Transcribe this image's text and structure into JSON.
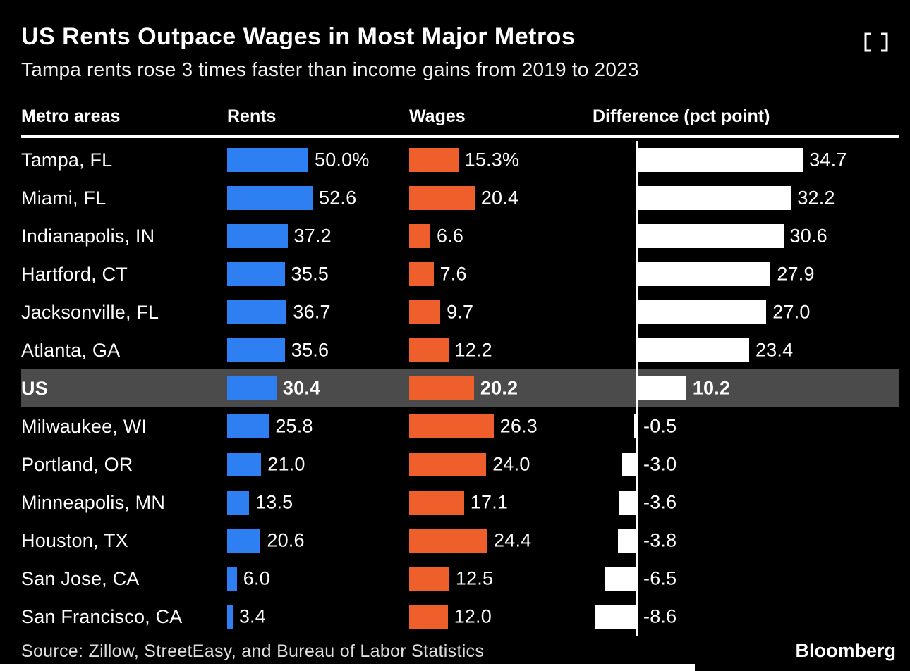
{
  "title": "US Rents Outpace Wages in Most Major Metros",
  "subtitle": "Tampa rents rose 3 times faster than income gains from 2019 to 2023",
  "columns": {
    "metro": "Metro areas",
    "rents": "Rents",
    "wages": "Wages",
    "diff": "Difference (pct point)"
  },
  "source": "Source: Zillow, StreetEasy, and Bureau of Labor Statistics",
  "brand": "Bloomberg",
  "colors": {
    "rents": "#2d7ff2",
    "wages": "#ee5f2b",
    "diff": "#ffffff",
    "highlight_row": "#4b4b4b",
    "background": "#000000"
  },
  "chart_data": {
    "type": "bar",
    "title": "US Rents Outpace Wages in Most Major Metros",
    "subtitle": "Tampa rents rose 3 times faster than income gains from 2019 to 2023",
    "orientation": "horizontal",
    "categories": [
      "Tampa, FL",
      "Miami, FL",
      "Indianapolis, IN",
      "Hartford, CT",
      "Jacksonville, FL",
      "Atlanta, GA",
      "US",
      "Milwaukee, WI",
      "Portland, OR",
      "Minneapolis, MN",
      "Houston, TX",
      "San Jose, CA",
      "San Francisco, CA"
    ],
    "highlight_category": "US",
    "highlight_index": 6,
    "series": [
      {
        "name": "Rents",
        "color": "#2d7ff2",
        "values": [
          50.0,
          52.6,
          37.2,
          35.5,
          36.7,
          35.6,
          30.4,
          25.8,
          21.0,
          13.5,
          20.6,
          6.0,
          3.4
        ],
        "labels": [
          "50.0%",
          "52.6",
          "37.2",
          "35.5",
          "36.7",
          "35.6",
          "30.4",
          "25.8",
          "21.0",
          "13.5",
          "20.6",
          "6.0",
          "3.4"
        ]
      },
      {
        "name": "Wages",
        "color": "#ee5f2b",
        "values": [
          15.3,
          20.4,
          6.6,
          7.6,
          9.7,
          12.2,
          20.2,
          26.3,
          24.0,
          17.1,
          24.4,
          12.5,
          12.0
        ],
        "labels": [
          "15.3%",
          "20.4",
          "6.6",
          "7.6",
          "9.7",
          "12.2",
          "20.2",
          "26.3",
          "24.0",
          "17.1",
          "24.4",
          "12.5",
          "12.0"
        ]
      },
      {
        "name": "Difference (pct point)",
        "color": "#ffffff",
        "values": [
          34.7,
          32.2,
          30.6,
          27.9,
          27.0,
          23.4,
          10.2,
          -0.5,
          -3.0,
          -3.6,
          -3.8,
          -6.5,
          -8.6
        ],
        "labels": [
          "34.7",
          "32.2",
          "30.6",
          "27.9",
          "27.0",
          "23.4",
          "10.2",
          "-0.5",
          "-3.0",
          "-3.6",
          "-3.8",
          "-6.5",
          "-8.6"
        ]
      }
    ]
  }
}
